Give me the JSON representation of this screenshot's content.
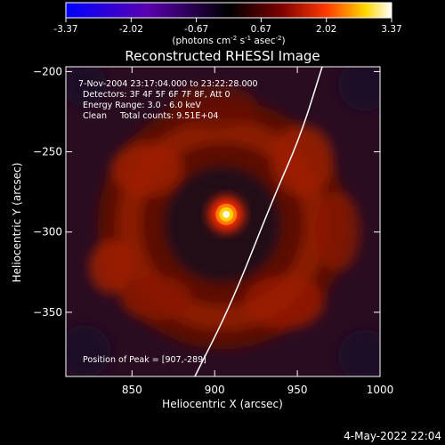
{
  "colorbar": {
    "ticks": [
      "-3.37",
      "-2.02",
      "-0.67",
      "0.67",
      "2.02",
      "3.37"
    ],
    "range": [
      -3.37,
      3.37
    ],
    "units_label_parts": [
      "(photons cm",
      "-2",
      " s",
      "-1",
      " asec",
      "-2",
      ")"
    ],
    "colors": [
      "#0000ff",
      "#5a00b0",
      "#000000",
      "#7a0000",
      "#ff3a00",
      "#ffd700",
      "#ffffff"
    ]
  },
  "chart_data": {
    "type": "heatmap",
    "title": "Reconstructed RHESSI Image",
    "xlabel": "Heliocentric X (arcsec)",
    "ylabel": "Heliocentric Y (arcsec)",
    "xlim": [
      810,
      1000
    ],
    "ylim": [
      -390,
      -197
    ],
    "xticks": [
      850,
      900,
      950,
      1000
    ],
    "yticks": [
      -200,
      -250,
      -300,
      -350
    ],
    "info_lines": [
      "7-Nov-2004 23:17:04.000 to 23:22:28.000",
      "Detectors: 3F 4F 5F 6F 7F 8F, Att 0",
      "Energy Range: 3.0 - 6.0 keV",
      "Clean     Total counts: 9.51E+04"
    ],
    "peak_label": "Position of Peak = [907,-289]",
    "peak": {
      "x": 907,
      "y": -289
    },
    "ring_center": {
      "x": 907,
      "y": -292
    },
    "limb_points": [
      [
        888,
        -390
      ],
      [
        910,
        -345
      ],
      [
        935,
        -280
      ],
      [
        952,
        -240
      ],
      [
        965,
        -197
      ]
    ],
    "grid": false
  },
  "footer": {
    "date": "4-May-2022 22:04"
  }
}
